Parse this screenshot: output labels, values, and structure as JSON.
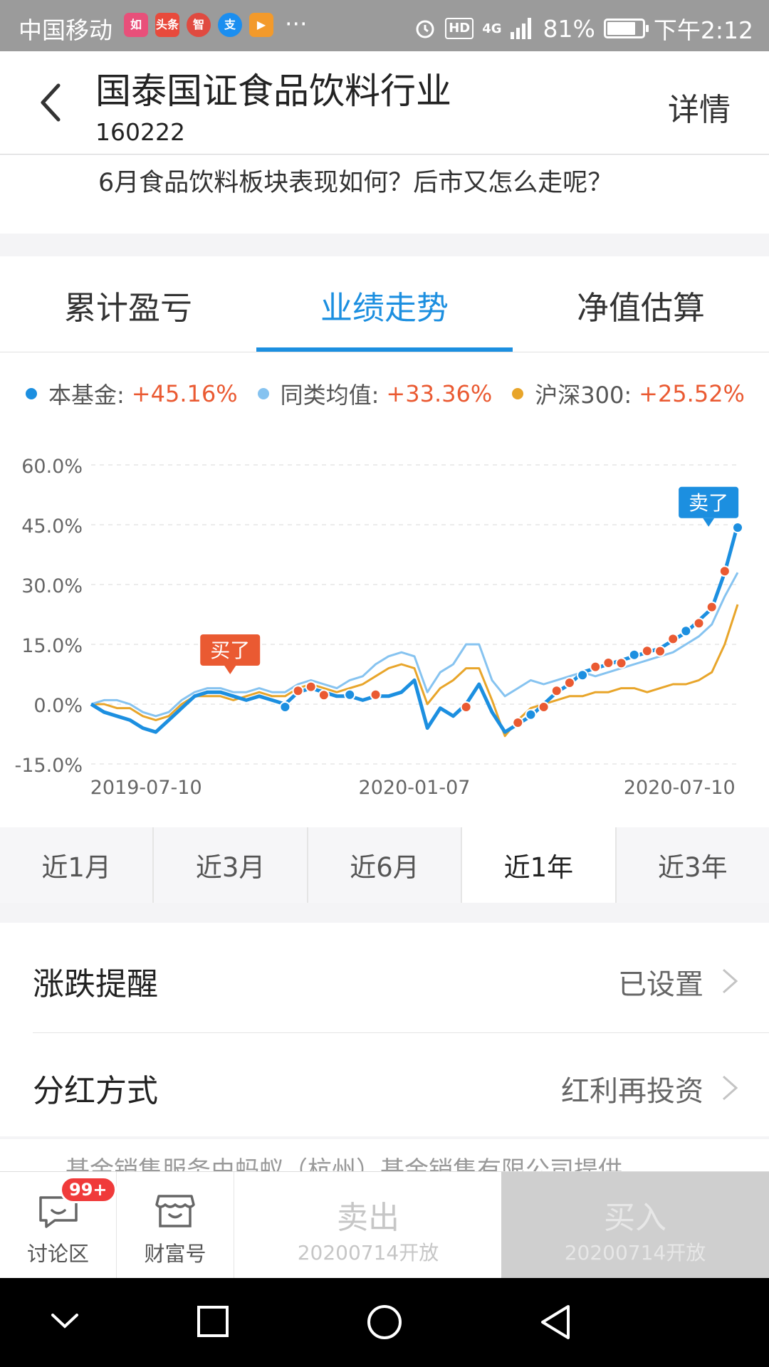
{
  "status_bar": {
    "carrier": "中国移动",
    "app_icons": [
      {
        "text": "如",
        "color": "#e8507a"
      },
      {
        "text": "头条",
        "color": "#e84a3c"
      },
      {
        "text": "智",
        "color": "#e04a40"
      },
      {
        "text": "支",
        "color": "#1b8ef0"
      },
      {
        "text": "▶",
        "color": "#f39a2b"
      }
    ],
    "more": "···",
    "hd": "HD",
    "network": "4G",
    "battery": "81%",
    "time": "下午2:12"
  },
  "header": {
    "title": "国泰国证食品饮料行业",
    "code": "160222",
    "detail_label": "详情"
  },
  "notice": "6月食品饮料板块表现如何？后市又怎么走呢？",
  "tabs": [
    "累计盈亏",
    "业绩走势",
    "净值估算"
  ],
  "active_tab": 1,
  "legend": [
    {
      "name": "本基金:",
      "value": "+45.16%",
      "color": "#1c8fe0"
    },
    {
      "name": "同类均值:",
      "value": "+33.36%",
      "color": "#86c3f0"
    },
    {
      "name": "沪深300:",
      "value": "+25.52%",
      "color": "#e8a52a"
    }
  ],
  "chart_data": {
    "type": "line",
    "y_ticks": [
      "60.0%",
      "45.0%",
      "30.0%",
      "15.0%",
      "0.0%",
      "-15.0%"
    ],
    "ylim": [
      -15,
      60
    ],
    "x_tick_labels": [
      "2019-07-10",
      "2020-01-07",
      "2020-07-10"
    ],
    "xlim": [
      0,
      100
    ],
    "series": [
      {
        "name": "本基金",
        "color": "#1c8fe0",
        "x": [
          0,
          2,
          4,
          6,
          8,
          10,
          12,
          14,
          16,
          18,
          20,
          22,
          24,
          26,
          28,
          30,
          32,
          34,
          36,
          38,
          40,
          42,
          44,
          46,
          48,
          50,
          52,
          54,
          56,
          58,
          60,
          62,
          64,
          66,
          68,
          70,
          72,
          74,
          76,
          78,
          80,
          82,
          84,
          86,
          88,
          90,
          92,
          94,
          96,
          98,
          100
        ],
        "y": [
          0,
          -2,
          -3,
          -4,
          -6,
          -7,
          -4,
          -1,
          2,
          3,
          3,
          2,
          1,
          2,
          1,
          0,
          3,
          4,
          3,
          2,
          2,
          1,
          2,
          2,
          3,
          6,
          -6,
          -1,
          -3,
          0,
          5,
          -2,
          -7,
          -5,
          -3,
          0,
          3,
          5,
          8,
          9,
          10,
          11,
          12,
          13,
          14,
          16,
          18,
          21,
          24,
          33,
          45
        ]
      },
      {
        "name": "同类均值",
        "color": "#86c3f0",
        "x": [
          0,
          2,
          4,
          6,
          8,
          10,
          12,
          14,
          16,
          18,
          20,
          22,
          24,
          26,
          28,
          30,
          32,
          34,
          36,
          38,
          40,
          42,
          44,
          46,
          48,
          50,
          52,
          54,
          56,
          58,
          60,
          62,
          64,
          66,
          68,
          70,
          72,
          74,
          76,
          78,
          80,
          82,
          84,
          86,
          88,
          90,
          92,
          94,
          96,
          98,
          100
        ],
        "y": [
          0,
          1,
          1,
          0,
          -2,
          -3,
          -2,
          1,
          3,
          4,
          4,
          3,
          3,
          4,
          3,
          3,
          5,
          6,
          5,
          4,
          6,
          7,
          10,
          12,
          13,
          12,
          3,
          8,
          10,
          15,
          15,
          6,
          2,
          4,
          6,
          5,
          6,
          7,
          8,
          7,
          8,
          9,
          10,
          11,
          12,
          13,
          15,
          17,
          20,
          27,
          33
        ]
      },
      {
        "name": "沪深300",
        "color": "#e8a52a",
        "x": [
          0,
          2,
          4,
          6,
          8,
          10,
          12,
          14,
          16,
          18,
          20,
          22,
          24,
          26,
          28,
          30,
          32,
          34,
          36,
          38,
          40,
          42,
          44,
          46,
          48,
          50,
          52,
          54,
          56,
          58,
          60,
          62,
          64,
          66,
          68,
          70,
          72,
          74,
          76,
          78,
          80,
          82,
          84,
          86,
          88,
          90,
          92,
          94,
          96,
          98,
          100
        ],
        "y": [
          0,
          0,
          -1,
          -1,
          -3,
          -4,
          -3,
          0,
          2,
          2,
          2,
          1,
          2,
          3,
          2,
          2,
          4,
          5,
          4,
          3,
          4,
          5,
          7,
          9,
          10,
          9,
          0,
          4,
          6,
          9,
          9,
          1,
          -8,
          -4,
          -1,
          0,
          1,
          2,
          2,
          3,
          3,
          4,
          4,
          3,
          4,
          5,
          5,
          6,
          8,
          15,
          25
        ]
      }
    ],
    "markers": {
      "buy_label": "买了",
      "sell_label": "卖了"
    }
  },
  "periods": [
    "近1月",
    "近3月",
    "近6月",
    "近1年",
    "近3年"
  ],
  "active_period": 3,
  "settings": [
    {
      "label": "涨跌提醒",
      "value": "已设置"
    },
    {
      "label": "分红方式",
      "value": "红利再投资"
    }
  ],
  "footnote": "基金销售服务由蚂蚁（杭州）基金销售有限公司提供",
  "action_bar": {
    "discuss_label": "讨论区",
    "discuss_badge": "99+",
    "wealth_label": "财富号",
    "sell_label": "卖出",
    "sell_sub": "20200714开放",
    "buy_label": "买入",
    "buy_sub": "20200714开放"
  }
}
